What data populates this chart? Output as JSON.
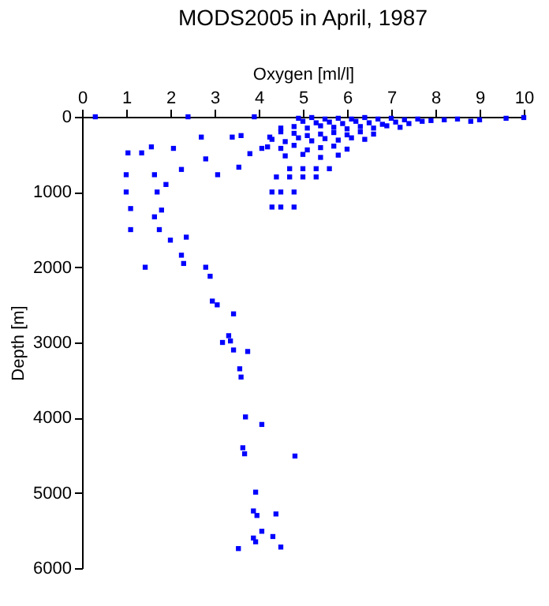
{
  "chart_data": {
    "type": "scatter",
    "title": "MODS2005 in April, 1987",
    "xlabel": "Oxygen [ml/l]",
    "ylabel": "Depth [m]",
    "marker": "square",
    "grid": false,
    "xlim": [
      0,
      10
    ],
    "ylim": [
      6000,
      0
    ],
    "xticks": [
      0,
      1,
      2,
      3,
      4,
      5,
      6,
      7,
      8,
      9,
      10
    ],
    "yticks": [
      0,
      1000,
      2000,
      3000,
      4000,
      5000,
      6000
    ],
    "series": [
      {
        "color": "#0000ff",
        "x": [
          0.3,
          2.4,
          3.9,
          4.9,
          5.2,
          5.5,
          5.8,
          6.1,
          6.4,
          6.7,
          7.0,
          7.3,
          7.6,
          7.9,
          8.2,
          8.5,
          8.8,
          9.0,
          9.6,
          10.0,
          5.0,
          5.3,
          5.6,
          5.9,
          6.2,
          6.5,
          6.8,
          7.1,
          7.4,
          7.7,
          4.8,
          5.1,
          5.4,
          5.7,
          6.0,
          6.3,
          6.6,
          6.9,
          7.2,
          4.5,
          4.8,
          5.1,
          5.4,
          5.7,
          6.0,
          6.3,
          6.6,
          4.3,
          4.6,
          4.9,
          5.2,
          5.5,
          5.8,
          6.1,
          6.4,
          4.2,
          4.5,
          4.8,
          5.1,
          5.4,
          5.7,
          6.0,
          4.6,
          5.0,
          5.4,
          5.8,
          4.7,
          5.0,
          5.3,
          5.6,
          4.4,
          4.7,
          5.0,
          5.3,
          4.3,
          4.5,
          4.8,
          4.3,
          4.5,
          4.8,
          1.04,
          1.35,
          1.57,
          1.0,
          1.0,
          1.1,
          1.64,
          1.7,
          1.9,
          2.07,
          2.25,
          2.7,
          2.8,
          3.07,
          3.4,
          3.55,
          3.6,
          3.8,
          4.07,
          4.25,
          4.5,
          1.64,
          1.1,
          1.75,
          2.0,
          2.36,
          1.8,
          1.43,
          2.25,
          2.3,
          2.8,
          2.9,
          2.95,
          3.06,
          3.43,
          3.32,
          3.18,
          3.36,
          3.43,
          3.75,
          3.57,
          3.6,
          3.7,
          4.07,
          3.64,
          3.68,
          4.82,
          3.93,
          3.88,
          3.96,
          4.39,
          4.07,
          3.88,
          3.93,
          4.32,
          3.54,
          4.5
        ],
        "values": [
          0,
          0,
          0,
          20,
          10,
          30,
          20,
          30,
          10,
          30,
          20,
          40,
          30,
          50,
          40,
          30,
          60,
          40,
          20,
          10,
          60,
          80,
          70,
          90,
          60,
          80,
          100,
          70,
          90,
          60,
          130,
          150,
          120,
          140,
          160,
          130,
          150,
          120,
          140,
          200,
          220,
          250,
          230,
          210,
          240,
          200,
          230,
          300,
          330,
          280,
          320,
          290,
          310,
          280,
          300,
          400,
          420,
          380,
          440,
          410,
          390,
          430,
          520,
          500,
          540,
          510,
          690,
          690,
          690,
          690,
          800,
          800,
          800,
          800,
          1000,
          1000,
          1000,
          1200,
          1200,
          1200,
          480,
          480,
          400,
          770,
          1000,
          1220,
          770,
          1000,
          900,
          420,
          700,
          270,
          560,
          770,
          270,
          670,
          250,
          490,
          420,
          270,
          150,
          1330,
          1500,
          1500,
          1640,
          1600,
          1240,
          2000,
          1840,
          1950,
          2000,
          2120,
          2450,
          2500,
          2620,
          2910,
          3000,
          2980,
          3100,
          3120,
          3350,
          3460,
          3990,
          4090,
          4400,
          4480,
          4510,
          4990,
          5240,
          5300,
          5280,
          5510,
          5600,
          5650,
          5580,
          5740,
          5720
        ]
      }
    ]
  }
}
